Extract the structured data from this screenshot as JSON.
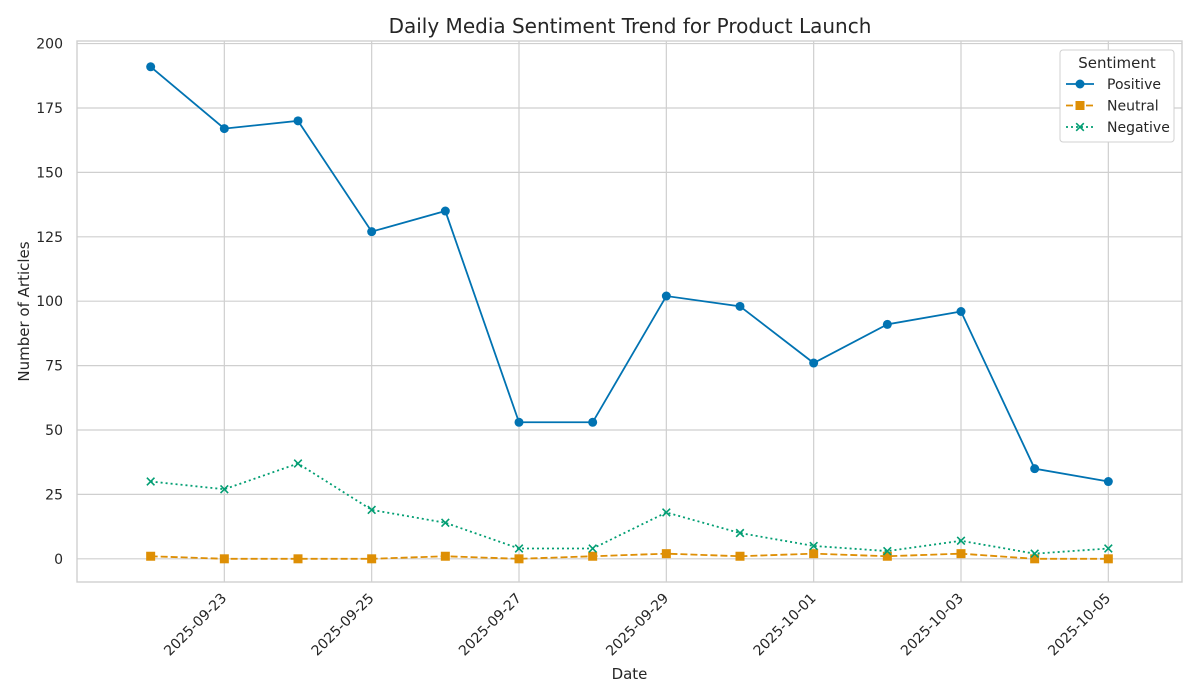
{
  "chart_data": {
    "type": "line",
    "title": "Daily Media Sentiment Trend for Product Launch",
    "xlabel": "Date",
    "ylabel": "Number of Articles",
    "ylim": [
      -9,
      201
    ],
    "xlim": [
      "2025-09-21",
      "2025-10-06"
    ],
    "yticks": [
      0,
      25,
      50,
      75,
      100,
      125,
      150,
      175,
      200
    ],
    "xticks": [
      "2025-09-23",
      "2025-09-25",
      "2025-09-27",
      "2025-09-29",
      "2025-10-01",
      "2025-10-03",
      "2025-10-05"
    ],
    "grid": true,
    "legend_title": "Sentiment",
    "legend_position": "top-right",
    "x": [
      "2025-09-22",
      "2025-09-23",
      "2025-09-24",
      "2025-09-25",
      "2025-09-26",
      "2025-09-27",
      "2025-09-28",
      "2025-09-29",
      "2025-09-30",
      "2025-10-01",
      "2025-10-02",
      "2025-10-03",
      "2025-10-04",
      "2025-10-05"
    ],
    "series": [
      {
        "name": "Positive",
        "color": "#0173b2",
        "marker": "circle",
        "line": "solid",
        "values": [
          191,
          167,
          170,
          127,
          135,
          53,
          53,
          102,
          98,
          76,
          91,
          96,
          35,
          30
        ]
      },
      {
        "name": "Neutral",
        "color": "#de8f05",
        "marker": "square",
        "line": "dashed",
        "values": [
          1,
          0,
          0,
          0,
          1,
          0,
          1,
          2,
          1,
          2,
          1,
          2,
          0,
          0
        ]
      },
      {
        "name": "Negative",
        "color": "#029e73",
        "marker": "x",
        "line": "dotted",
        "values": [
          30,
          27,
          37,
          19,
          14,
          4,
          4,
          18,
          10,
          5,
          3,
          7,
          2,
          4
        ]
      }
    ]
  }
}
